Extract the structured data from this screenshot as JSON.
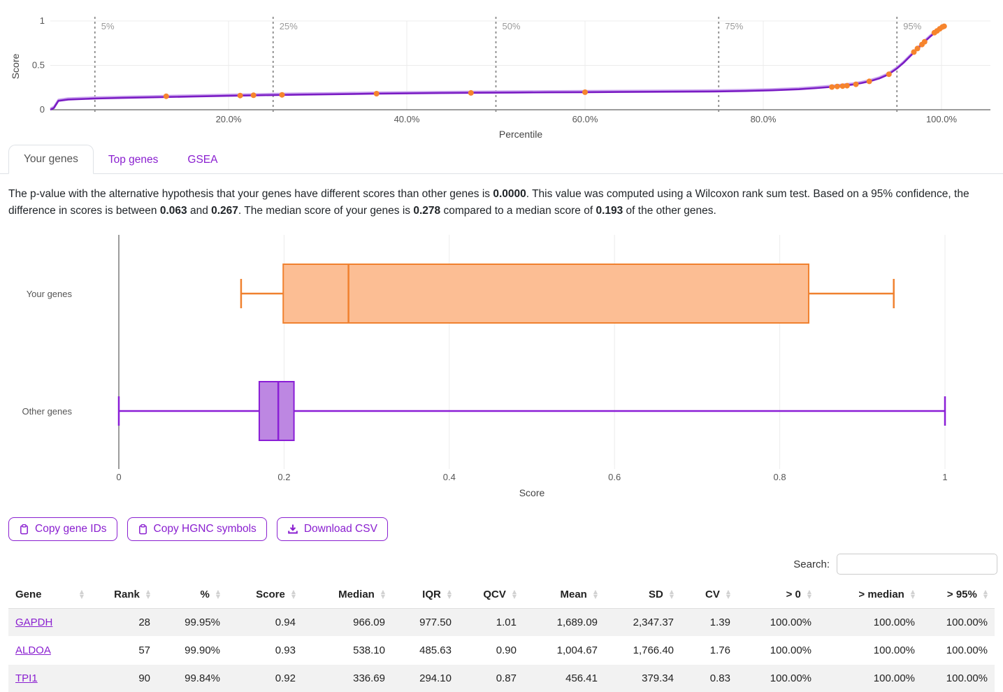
{
  "colors": {
    "accent": "#8a1fd0",
    "curve": "#7a1cc4",
    "curve_light": "#c9a2ee",
    "point": "#f6842d",
    "orange_stroke": "#f0812f",
    "orange_fill": "#fcbe94",
    "purple_stroke": "#8a1ed6",
    "purple_fill": "#bd87e2"
  },
  "chart_data": [
    {
      "type": "line",
      "xlabel": "Percentile",
      "ylabel": "Score",
      "xlim": [
        0,
        105.5
      ],
      "ylim": [
        0,
        1
      ],
      "grid": true,
      "x_ticks": [
        {
          "value": 20,
          "label": "20.0%"
        },
        {
          "value": 40,
          "label": "40.0%"
        },
        {
          "value": 60,
          "label": "60.0%"
        },
        {
          "value": 80,
          "label": "80.0%"
        },
        {
          "value": 100,
          "label": "100.0%"
        }
      ],
      "y_ticks": [
        {
          "value": 0,
          "label": "0"
        },
        {
          "value": 0.5,
          "label": "0.5"
        },
        {
          "value": 1,
          "label": "1"
        }
      ],
      "percentile_lines": [
        {
          "value": 5,
          "label": "5%"
        },
        {
          "value": 25,
          "label": "25%"
        },
        {
          "value": 50,
          "label": "50%"
        },
        {
          "value": 75,
          "label": "75%"
        },
        {
          "value": 95,
          "label": "95%"
        }
      ],
      "curve_points": [
        [
          0,
          0
        ],
        [
          0.4,
          0.02
        ],
        [
          0.9,
          0.1
        ],
        [
          2,
          0.115
        ],
        [
          4,
          0.122
        ],
        [
          5,
          0.126
        ],
        [
          8,
          0.133
        ],
        [
          12,
          0.141
        ],
        [
          16,
          0.149
        ],
        [
          20,
          0.157
        ],
        [
          24,
          0.164
        ],
        [
          28,
          0.17
        ],
        [
          32,
          0.175
        ],
        [
          36,
          0.18
        ],
        [
          40,
          0.184
        ],
        [
          44,
          0.188
        ],
        [
          48,
          0.191
        ],
        [
          52,
          0.194
        ],
        [
          56,
          0.196
        ],
        [
          60,
          0.198
        ],
        [
          64,
          0.2
        ],
        [
          68,
          0.202
        ],
        [
          72,
          0.204
        ],
        [
          75,
          0.206
        ],
        [
          78,
          0.211
        ],
        [
          81,
          0.219
        ],
        [
          84,
          0.231
        ],
        [
          86,
          0.244
        ],
        [
          88,
          0.26
        ],
        [
          90,
          0.283
        ],
        [
          91,
          0.3
        ],
        [
          92,
          0.322
        ],
        [
          93,
          0.352
        ],
        [
          94,
          0.395
        ],
        [
          95,
          0.465
        ],
        [
          95.7,
          0.525
        ],
        [
          96.4,
          0.595
        ],
        [
          97,
          0.655
        ],
        [
          97.6,
          0.715
        ],
        [
          98.2,
          0.775
        ],
        [
          98.8,
          0.83
        ],
        [
          99.3,
          0.872
        ],
        [
          99.7,
          0.905
        ],
        [
          100.2,
          0.945
        ]
      ],
      "gene_points": [
        [
          13,
          0.152
        ],
        [
          21.3,
          0.16
        ],
        [
          22.8,
          0.163
        ],
        [
          26,
          0.168
        ],
        [
          36.6,
          0.181
        ],
        [
          47.2,
          0.19
        ],
        [
          60,
          0.198
        ],
        [
          87.7,
          0.256
        ],
        [
          88.3,
          0.262
        ],
        [
          88.9,
          0.266
        ],
        [
          89.4,
          0.271
        ],
        [
          90.4,
          0.287
        ],
        [
          91.9,
          0.32
        ],
        [
          94.1,
          0.4
        ],
        [
          96.9,
          0.65
        ],
        [
          97.3,
          0.69
        ],
        [
          97.8,
          0.735
        ],
        [
          98.1,
          0.765
        ],
        [
          99.2,
          0.868
        ],
        [
          99.5,
          0.888
        ],
        [
          99.8,
          0.912
        ],
        [
          100.1,
          0.932
        ],
        [
          100.3,
          0.94
        ]
      ]
    },
    {
      "type": "boxplot",
      "xlabel": "Score",
      "xlim": [
        0,
        1
      ],
      "grid": true,
      "x_ticks": [
        {
          "value": 0,
          "label": "0"
        },
        {
          "value": 0.2,
          "label": "0.2"
        },
        {
          "value": 0.4,
          "label": "0.4"
        },
        {
          "value": 0.6,
          "label": "0.6"
        },
        {
          "value": 0.8,
          "label": "0.8"
        },
        {
          "value": 1,
          "label": "1"
        }
      ],
      "categories": [
        "Your genes",
        "Other genes"
      ],
      "series": [
        {
          "name": "Your genes",
          "whisker_low": 0.148,
          "q1": 0.199,
          "median": 0.278,
          "q3": 0.835,
          "whisker_high": 0.938,
          "stroke": "#f0812f",
          "fill": "#fcbe94"
        },
        {
          "name": "Other genes",
          "whisker_low": 0.0,
          "q1": 0.17,
          "median": 0.193,
          "q3": 0.212,
          "whisker_high": 1.0,
          "stroke": "#8a1ed6",
          "fill": "#bd87e2"
        }
      ]
    }
  ],
  "tabs": {
    "items": [
      {
        "label": "Your genes",
        "active": true
      },
      {
        "label": "Top genes",
        "active": false
      },
      {
        "label": "GSEA",
        "active": false
      }
    ]
  },
  "summary": {
    "segments": [
      {
        "text": "The p-value with the alternative hypothesis that your genes have different scores than other genes is ",
        "bold": false
      },
      {
        "text": "0.0000",
        "bold": true
      },
      {
        "text": ". This value was computed using a Wilcoxon rank sum test. Based on a 95% confidence, the difference in scores is between ",
        "bold": false
      },
      {
        "text": "0.063",
        "bold": true
      },
      {
        "text": " and ",
        "bold": false
      },
      {
        "text": "0.267",
        "bold": true
      },
      {
        "text": ". The median score of your genes is ",
        "bold": false
      },
      {
        "text": "0.278",
        "bold": true
      },
      {
        "text": " compared to a median score of ",
        "bold": false
      },
      {
        "text": "0.193",
        "bold": true
      },
      {
        "text": " of the other genes.",
        "bold": false
      }
    ]
  },
  "toolbar": {
    "buttons": [
      {
        "label": "Copy gene IDs",
        "icon": "clipboard-icon"
      },
      {
        "label": "Copy HGNC symbols",
        "icon": "clipboard-icon"
      },
      {
        "label": "Download CSV",
        "icon": "download-icon"
      }
    ]
  },
  "search": {
    "label": "Search:",
    "value": ""
  },
  "table": {
    "columns": [
      {
        "label": "Gene",
        "align": "left"
      },
      {
        "label": "Rank",
        "align": "right"
      },
      {
        "label": "%",
        "align": "right"
      },
      {
        "label": "Score",
        "align": "right"
      },
      {
        "label": "Median",
        "align": "right"
      },
      {
        "label": "IQR",
        "align": "right"
      },
      {
        "label": "QCV",
        "align": "right"
      },
      {
        "label": "Mean",
        "align": "right"
      },
      {
        "label": "SD",
        "align": "right"
      },
      {
        "label": "CV",
        "align": "right"
      },
      {
        "label": "> 0",
        "align": "right"
      },
      {
        "label": "> median",
        "align": "right"
      },
      {
        "label": "> 95%",
        "align": "right"
      }
    ],
    "rows": [
      {
        "gene": "GAPDH",
        "values": [
          "28",
          "99.95%",
          "0.94",
          "966.09",
          "977.50",
          "1.01",
          "1,689.09",
          "2,347.37",
          "1.39",
          "100.00%",
          "100.00%",
          "100.00%"
        ]
      },
      {
        "gene": "ALDOA",
        "values": [
          "57",
          "99.90%",
          "0.93",
          "538.10",
          "485.63",
          "0.90",
          "1,004.67",
          "1,766.40",
          "1.76",
          "100.00%",
          "100.00%",
          "100.00%"
        ]
      },
      {
        "gene": "TPI1",
        "values": [
          "90",
          "99.84%",
          "0.92",
          "336.69",
          "294.10",
          "0.87",
          "456.41",
          "379.34",
          "0.83",
          "100.00%",
          "100.00%",
          "100.00%"
        ]
      }
    ]
  }
}
